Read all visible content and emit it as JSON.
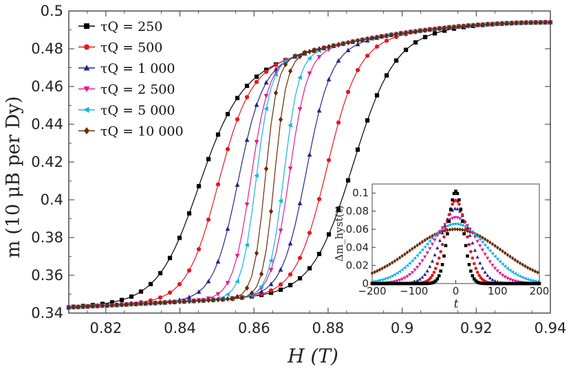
{
  "chart_data": {
    "type": "line",
    "title": "",
    "xlabel": "H (T)",
    "ylabel": "m (10 μB per Dy)",
    "xlim": [
      0.81,
      0.94
    ],
    "ylim": [
      0.34,
      0.5
    ],
    "xticks": [
      "0.82",
      "0.84",
      "0.86",
      "0.88",
      "0.9",
      "0.92",
      "0.94"
    ],
    "yticks": [
      "0.34",
      "0.36",
      "0.38",
      "0.4",
      "0.42",
      "0.44",
      "0.46",
      "0.48",
      "0.5"
    ],
    "legend_position": "top-left",
    "series": [
      {
        "name": "τQ = 250",
        "tau": 250,
        "color": "#000000",
        "marker": "square",
        "center_up": 0.8865,
        "center_down": 0.8445,
        "width": 0.0055
      },
      {
        "name": "τQ = 500",
        "tau": 500,
        "color": "#e8161c",
        "marker": "circle",
        "center_up": 0.8795,
        "center_down": 0.85,
        "width": 0.0042
      },
      {
        "name": "τQ = 1 000",
        "tau": 1000,
        "color": "#25248f",
        "marker": "triangle-up",
        "center_up": 0.874,
        "center_down": 0.8555,
        "width": 0.0033
      },
      {
        "name": "τQ = 2 500",
        "tau": 2500,
        "color": "#e6198f",
        "marker": "triangle-down",
        "center_up": 0.8695,
        "center_down": 0.859,
        "width": 0.0024
      },
      {
        "name": "τQ = 5 000",
        "tau": 5000,
        "color": "#11b4e6",
        "marker": "triangle-left",
        "center_up": 0.868,
        "center_down": 0.8605,
        "width": 0.002
      },
      {
        "name": "τQ = 10 000",
        "tau": 10000,
        "color": "#6b2a06",
        "marker": "diamond",
        "center_up": 0.8655,
        "center_down": 0.863,
        "width": 0.0016
      }
    ],
    "inset": {
      "type": "scatter",
      "xlabel": "t",
      "ylabel": "Δm_hyst(t)",
      "xlim": [
        -200,
        200
      ],
      "ylim": [
        0,
        0.11
      ],
      "xticks": [
        "−200",
        "−100",
        "0",
        "100",
        "200"
      ],
      "yticks": [
        "0",
        "0.02",
        "0.04",
        "0.06",
        "0.08",
        "0.1"
      ],
      "peaks": [
        0.102,
        0.092,
        0.083,
        0.073,
        0.066,
        0.06
      ],
      "widths": [
        18,
        26,
        36,
        55,
        75,
        110
      ]
    }
  }
}
